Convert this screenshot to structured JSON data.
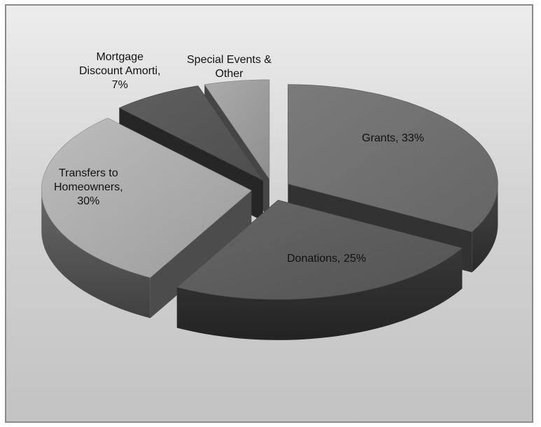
{
  "chart_data": {
    "type": "pie",
    "style": "3d-exploded",
    "title": "",
    "slices": [
      {
        "category": "Grants",
        "value": 33,
        "label": "Grants, 33%",
        "color": "#6e6e6e"
      },
      {
        "category": "Donations",
        "value": 25,
        "label": "Donations, 25%",
        "color": "#5b5b5b"
      },
      {
        "category": "Transfers to Homeowners",
        "value": 30,
        "label_lines": [
          "Transfers to",
          "Homeowners,",
          "30%"
        ],
        "color": "#a9a9a9"
      },
      {
        "category": "Mortgage Discount Amorti",
        "value": 7,
        "label_lines": [
          "Mortgage",
          "Discount Amorti,",
          "7%"
        ],
        "color": "#555555"
      },
      {
        "category": "Special Events & Other",
        "value": 5,
        "label_lines": [
          "Special Events &",
          "Other"
        ],
        "color": "#9a9a9a"
      }
    ],
    "legend": "none",
    "grid": false
  }
}
